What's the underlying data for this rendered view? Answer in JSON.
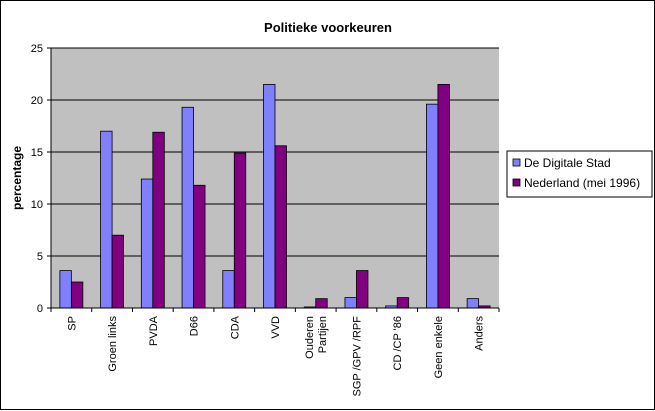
{
  "chart_data": {
    "type": "bar",
    "title": "Politieke voorkeuren",
    "xlabel": "",
    "ylabel": "percentage",
    "ylim": [
      0,
      25
    ],
    "yticks": [
      0,
      5,
      10,
      15,
      20,
      25
    ],
    "ytick_labels": [
      "0",
      "5",
      "10",
      "15",
      "20",
      "25"
    ],
    "grid": true,
    "legend_position": "right",
    "categories": [
      [
        "SP"
      ],
      [
        "Groen links"
      ],
      [
        "PVDA"
      ],
      [
        "D66"
      ],
      [
        "CDA"
      ],
      [
        "VVD"
      ],
      [
        "Ouderen",
        "Partijen"
      ],
      [
        "SGP /GPV /RPF"
      ],
      [
        "CD /CP '86"
      ],
      [
        "Geen enkele"
      ],
      [
        "Anders"
      ]
    ],
    "series": [
      {
        "name": "De Digitale Stad",
        "color": "#8080ff",
        "values": [
          3.6,
          17.0,
          12.4,
          19.3,
          3.6,
          21.5,
          0.1,
          1.0,
          0.2,
          19.6,
          0.9
        ]
      },
      {
        "name": "Nederland (mei 1996)",
        "color": "#800080",
        "values": [
          2.5,
          7.0,
          16.9,
          11.8,
          14.9,
          15.6,
          0.9,
          3.6,
          1.0,
          21.5,
          0.2
        ]
      }
    ]
  }
}
